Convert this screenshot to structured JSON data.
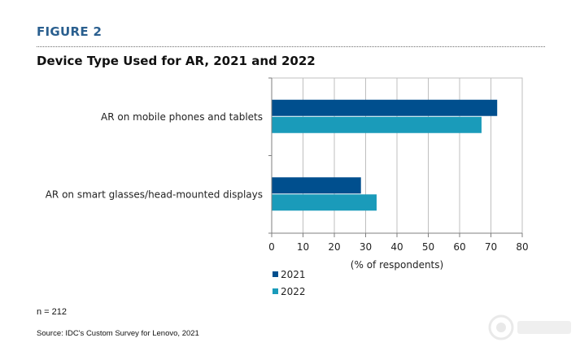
{
  "header": {
    "figure_label": "FIGURE 2",
    "title": "Device Type Used for AR, 2021 and 2022"
  },
  "chart_data": {
    "type": "bar",
    "orientation": "horizontal",
    "categories": [
      "AR on mobile phones and tablets",
      "AR on smart glasses/head-mounted displays"
    ],
    "series": [
      {
        "name": "2021",
        "values": [
          72,
          28.5
        ],
        "color": "#004f8e"
      },
      {
        "name": "2022",
        "values": [
          67,
          33.5
        ],
        "color": "#1a9bba"
      }
    ],
    "xlabel": "(% of respondents)",
    "xlim": [
      0,
      80
    ],
    "xticks": [
      0,
      10,
      20,
      30,
      40,
      50,
      60,
      70,
      80
    ],
    "grid": true,
    "legend_position": "bottom"
  },
  "footer": {
    "note": "n = 212",
    "source": "Source: IDC's Custom Survey for Lenovo, 2021"
  }
}
